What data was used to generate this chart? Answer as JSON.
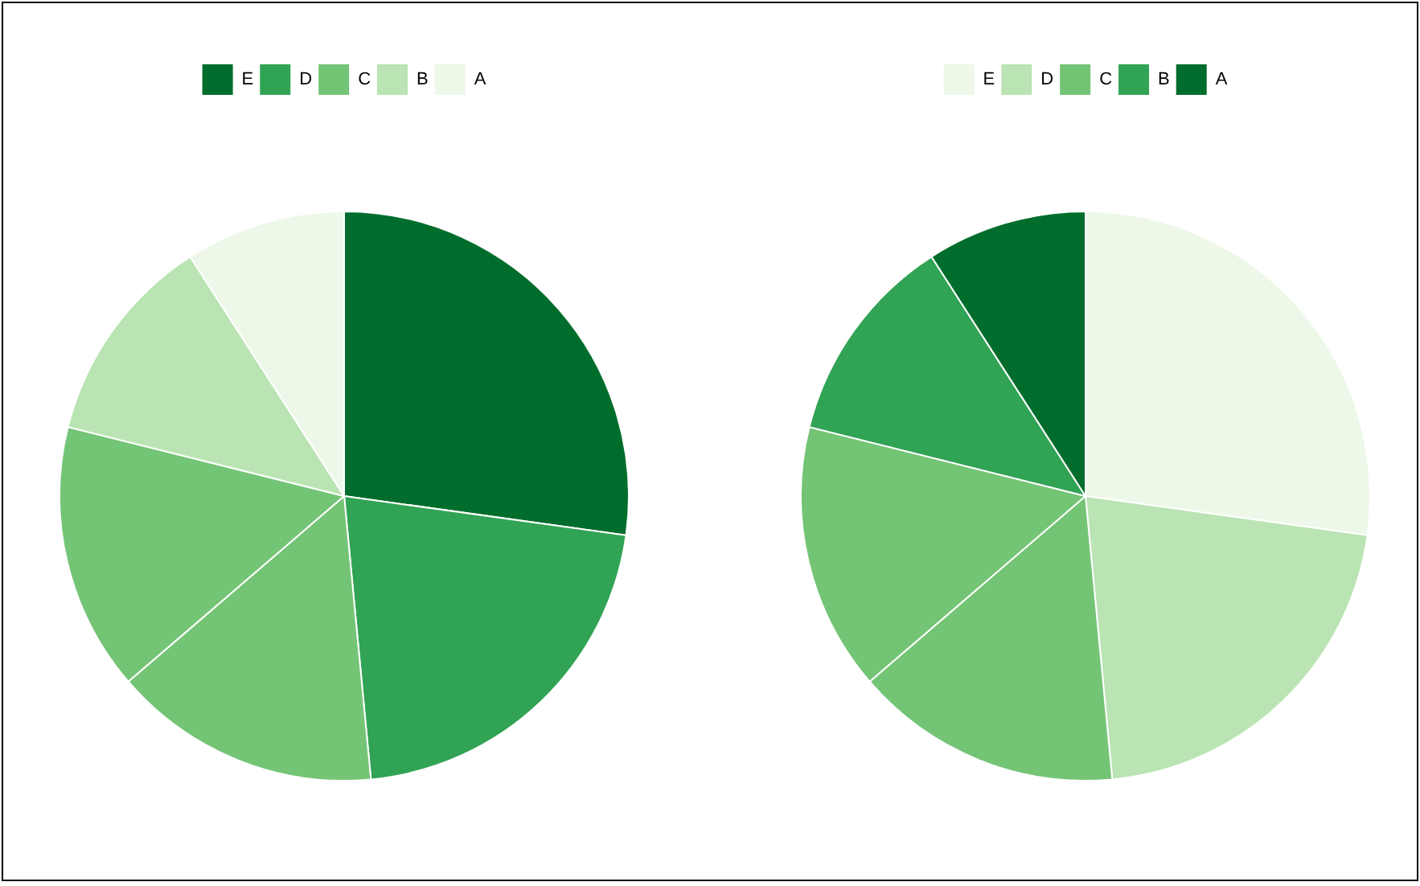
{
  "chart_data": [
    {
      "type": "pie",
      "categories": [
        "E",
        "D",
        "C",
        null,
        "B",
        "A"
      ],
      "values": [
        27.2,
        21.3,
        15.2,
        15.2,
        12.0,
        9.1
      ],
      "colors": [
        "#006d2c",
        "#31a354",
        "#74c476",
        "#74c476",
        "#bae4b3",
        "#edf8e9"
      ],
      "legend": "top"
    },
    {
      "type": "pie",
      "categories": [
        "E",
        "D",
        "C",
        null,
        "B",
        "A"
      ],
      "values": [
        27.2,
        21.3,
        15.2,
        15.2,
        12.0,
        9.1
      ],
      "colors": [
        "#edf8e9",
        "#bae4b3",
        "#74c476",
        "#74c476",
        "#31a354",
        "#006d2c"
      ],
      "legend": "top"
    }
  ]
}
